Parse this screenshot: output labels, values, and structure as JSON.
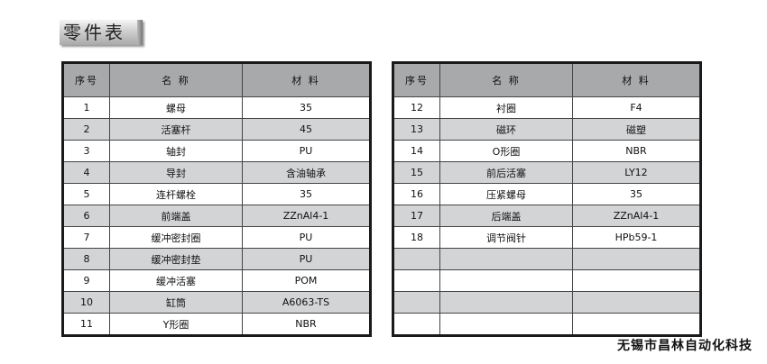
{
  "title": "零件表",
  "headers": {
    "no": "序号",
    "name": "名 称",
    "material": "材 料"
  },
  "left_table": [
    {
      "no": "1",
      "name": "螺母",
      "material": "35"
    },
    {
      "no": "2",
      "name": "活塞杆",
      "material": "45"
    },
    {
      "no": "3",
      "name": "轴封",
      "material": "PU"
    },
    {
      "no": "4",
      "name": "导封",
      "material": "含油轴承"
    },
    {
      "no": "5",
      "name": "连杆螺栓",
      "material": "35"
    },
    {
      "no": "6",
      "name": "前端盖",
      "material": "ZZnAl4-1"
    },
    {
      "no": "7",
      "name": "缓冲密封圈",
      "material": "PU"
    },
    {
      "no": "8",
      "name": "缓冲密封垫",
      "material": "PU"
    },
    {
      "no": "9",
      "name": "缓冲活塞",
      "material": "POM"
    },
    {
      "no": "10",
      "name": "缸筒",
      "material": "A6063-TS"
    },
    {
      "no": "11",
      "name": "Y形圈",
      "material": "NBR"
    }
  ],
  "right_table": [
    {
      "no": "12",
      "name": "衬圈",
      "material": "F4"
    },
    {
      "no": "13",
      "name": "磁环",
      "material": "磁塑"
    },
    {
      "no": "14",
      "name": "O形圈",
      "material": "NBR"
    },
    {
      "no": "15",
      "name": "前后活塞",
      "material": "LY12"
    },
    {
      "no": "16",
      "name": "压紧螺母",
      "material": "35"
    },
    {
      "no": "17",
      "name": "后端盖",
      "material": "ZZnAl4-1"
    },
    {
      "no": "18",
      "name": "调节阀针",
      "material": "HPb59-1"
    },
    {
      "no": "",
      "name": "",
      "material": ""
    },
    {
      "no": "",
      "name": "",
      "material": ""
    },
    {
      "no": "",
      "name": "",
      "material": ""
    },
    {
      "no": "",
      "name": "",
      "material": ""
    }
  ],
  "footer": "无锡市昌林自动化科技"
}
